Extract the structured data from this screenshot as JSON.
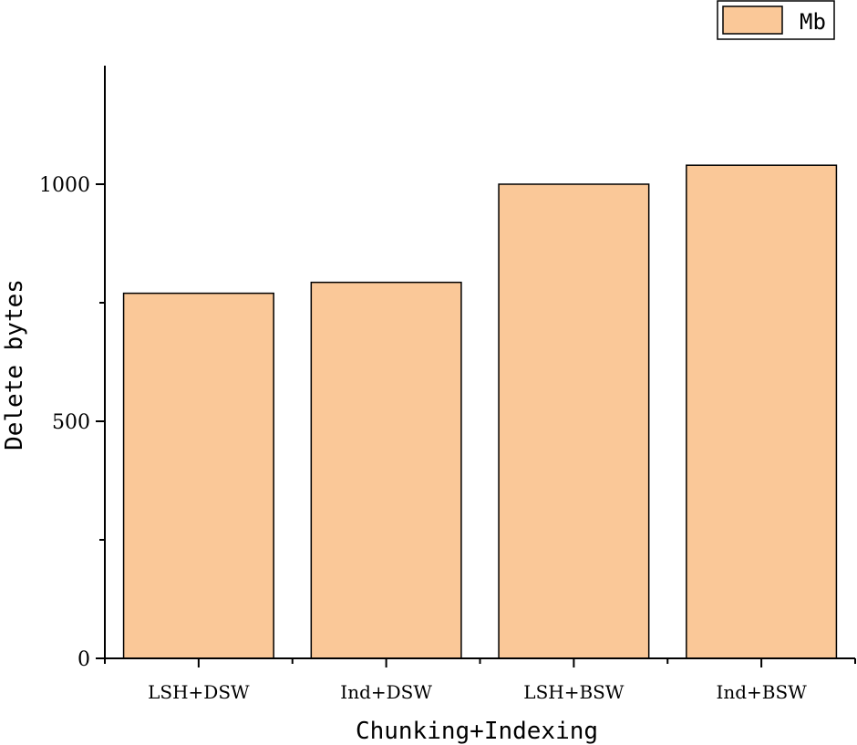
{
  "chart_data": {
    "type": "bar",
    "categories": [
      "LSH+DSW",
      "Ind+DSW",
      "LSH+BSW",
      "Ind+BSW"
    ],
    "series": [
      {
        "name": "Mb",
        "values": [
          770,
          793,
          1000,
          1040
        ],
        "color": "#fac898"
      }
    ],
    "xlabel": "Chunking+Indexing",
    "ylabel": "Delete bytes",
    "ylim": [
      0,
      1250
    ],
    "yticks": [
      0,
      500,
      1000
    ],
    "yticks_minor": [
      250,
      750
    ],
    "grid": false,
    "legend_position": "top-right",
    "bar_edge_color": "#000000"
  }
}
